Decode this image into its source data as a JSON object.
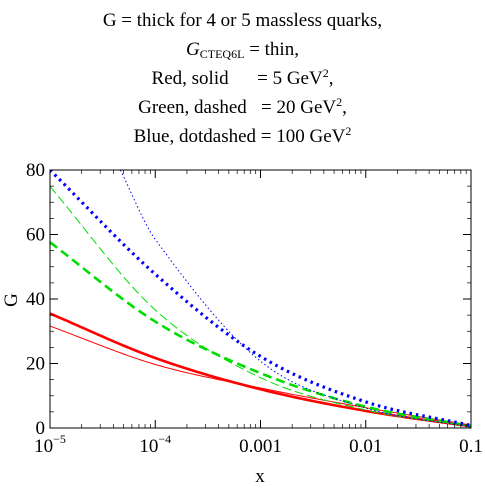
{
  "chart_data": {
    "type": "line",
    "title_lines": [
      {
        "text": "G = thick for 4 or 5 massless quarks,"
      },
      {
        "main": "G",
        "sub": "CTEQ6L",
        "rest": " = thin,"
      },
      {
        "text": "Red, solid      = 5 GeV",
        "sup": "2",
        "after": ","
      },
      {
        "text": "Green, dashed   = 20 GeV",
        "sup": "2",
        "after": ","
      },
      {
        "text": "Blue, dotdashed = 100 GeV",
        "sup": "2",
        "after": ""
      }
    ],
    "xlabel": "x",
    "ylabel": "G",
    "xscale": "log",
    "xlim": [
      1e-05,
      0.1
    ],
    "ylim": [
      0,
      80
    ],
    "x_ticks": [
      {
        "value": 1e-05,
        "base": "10",
        "exp": "−5",
        "text": ""
      },
      {
        "value": 0.0001,
        "base": "10",
        "exp": "−4",
        "text": ""
      },
      {
        "value": 0.001,
        "base": "",
        "exp": "",
        "text": "0.001"
      },
      {
        "value": 0.01,
        "base": "",
        "exp": "",
        "text": "0.01"
      },
      {
        "value": 0.1,
        "base": "",
        "exp": "",
        "text": "0.1"
      }
    ],
    "y_ticks": [
      {
        "value": 0,
        "text": "0"
      },
      {
        "value": 20,
        "text": "20"
      },
      {
        "value": 40,
        "text": "40"
      },
      {
        "value": 60,
        "text": "60"
      },
      {
        "value": 80,
        "text": "80"
      }
    ],
    "grid": false,
    "series": [
      {
        "group": "massless",
        "Q2": 5,
        "color": "#ff0000",
        "style": "solid",
        "weight": "thick",
        "points": [
          [
            1e-05,
            35.5
          ],
          [
            0.0001,
            21.7
          ],
          [
            0.001,
            12.0
          ],
          [
            0.01,
            5.3
          ],
          [
            0.1,
            0.5
          ]
        ]
      },
      {
        "group": "CTEQ6L",
        "Q2": 5,
        "color": "#ff0000",
        "style": "solid",
        "weight": "thin",
        "points": [
          [
            1e-05,
            31.6
          ],
          [
            0.0001,
            19.7
          ],
          [
            0.001,
            12.4
          ],
          [
            0.01,
            6.3
          ],
          [
            0.1,
            0.9
          ]
        ]
      },
      {
        "group": "massless",
        "Q2": 20,
        "color": "#00dd00",
        "style": "dashed",
        "weight": "thick",
        "points": [
          [
            1e-05,
            57.6
          ],
          [
            0.0001,
            33.0
          ],
          [
            0.001,
            17.0
          ],
          [
            0.01,
            6.6
          ],
          [
            0.1,
            0.6
          ]
        ]
      },
      {
        "group": "CTEQ6L",
        "Q2": 20,
        "color": "#00dd00",
        "style": "dashed",
        "weight": "thin",
        "points": [
          [
            1e-05,
            74.9
          ],
          [
            0.0001,
            36.6
          ],
          [
            0.001,
            15.6
          ],
          [
            0.01,
            5.6
          ],
          [
            0.1,
            0.5
          ]
        ]
      },
      {
        "group": "massless",
        "Q2": 100,
        "color": "#0000ff",
        "style": "dotted",
        "weight": "thick",
        "points": [
          [
            1e-05,
            80.0
          ],
          [
            0.0001,
            47.7
          ],
          [
            0.001,
            22.2
          ],
          [
            0.01,
            8.1
          ],
          [
            0.1,
            0.8
          ]
        ]
      },
      {
        "group": "CTEQ6L",
        "Q2": 100,
        "color": "#0000ff",
        "style": "dotted",
        "weight": "thin",
        "points": [
          [
            4.66e-05,
            80.0
          ],
          [
            0.0001,
            58.5
          ],
          [
            0.001,
            20.7
          ],
          [
            0.01,
            6.2
          ],
          [
            0.1,
            0.3
          ]
        ]
      }
    ]
  }
}
